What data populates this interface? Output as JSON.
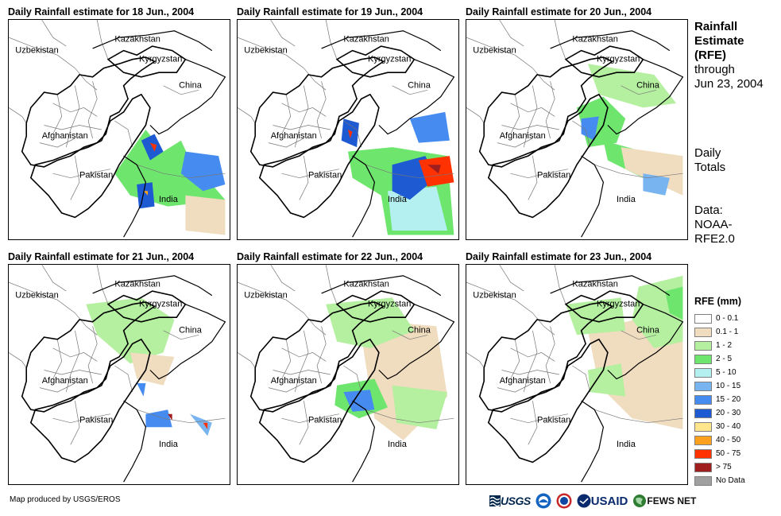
{
  "panels": [
    {
      "title": "Daily Rainfall estimate for 18 Jun., 2004"
    },
    {
      "title": "Daily Rainfall estimate for 19 Jun., 2004"
    },
    {
      "title": "Daily Rainfall estimate for 20 Jun., 2004"
    },
    {
      "title": "Daily Rainfall estimate for 21 Jun., 2004"
    },
    {
      "title": "Daily Rainfall estimate for 22 Jun., 2004"
    },
    {
      "title": "Daily Rainfall estimate for 23 Jun., 2004"
    }
  ],
  "places": {
    "kazakhstan": "Kazakhstan",
    "uzbekistan": "Uzbekistan",
    "kyrgyzstan": "Kyrgyzstan",
    "china": "China",
    "afghanistan": "Afghanistan",
    "pakistan": "Pakistan",
    "india": "India"
  },
  "side": {
    "title_line1": "Rainfall",
    "title_line2": "Estimate",
    "title_line3": "(RFE)",
    "title_line4": "through",
    "title_line5": "Jun 23, 2004",
    "totals_line1": "Daily",
    "totals_line2": "Totals",
    "data_line1": "Data:",
    "data_line2": "NOAA-",
    "data_line3": "RFE2.0"
  },
  "legend": {
    "title": "RFE (mm)",
    "items": [
      {
        "label": "0 - 0.1",
        "color": "#ffffff"
      },
      {
        "label": "0.1 - 1",
        "color": "#f0dcbe"
      },
      {
        "label": "1 - 2",
        "color": "#b4f0a0"
      },
      {
        "label": "2 - 5",
        "color": "#6ee66e"
      },
      {
        "label": "5 - 10",
        "color": "#b4f0f0"
      },
      {
        "label": "10 - 15",
        "color": "#78b4f0"
      },
      {
        "label": "15 - 20",
        "color": "#468cf0"
      },
      {
        "label": "20 - 30",
        "color": "#1e5ad2"
      },
      {
        "label": "30 - 40",
        "color": "#ffe68c"
      },
      {
        "label": "40 - 50",
        "color": "#ffa01e"
      },
      {
        "label": "50 - 75",
        "color": "#ff3200"
      },
      {
        "label": "> 75",
        "color": "#a01e1e"
      },
      {
        "label": "No Data",
        "color": "#a0a0a0"
      }
    ]
  },
  "credit": "Map produced by USGS/EROS",
  "logos": {
    "usgs": "USGS",
    "usaid": "USAID",
    "fews": "FEWS NET"
  },
  "rain": [
    [
      {
        "cls": 3,
        "pts": [
          [
            0.62,
            0.5
          ],
          [
            0.7,
            0.6
          ],
          [
            0.78,
            0.55
          ],
          [
            0.85,
            0.7
          ],
          [
            0.92,
            0.75
          ],
          [
            0.98,
            0.82
          ],
          [
            0.72,
            0.85
          ],
          [
            0.55,
            0.8
          ],
          [
            0.48,
            0.7
          ]
        ]
      },
      {
        "cls": 7,
        "pts": [
          [
            0.6,
            0.55
          ],
          [
            0.66,
            0.52
          ],
          [
            0.7,
            0.6
          ],
          [
            0.64,
            0.64
          ]
        ]
      },
      {
        "cls": 10,
        "pts": [
          [
            0.64,
            0.56
          ],
          [
            0.67,
            0.57
          ],
          [
            0.66,
            0.6
          ]
        ]
      },
      {
        "cls": 6,
        "pts": [
          [
            0.8,
            0.6
          ],
          [
            0.95,
            0.62
          ],
          [
            0.98,
            0.75
          ],
          [
            0.88,
            0.78
          ],
          [
            0.78,
            0.7
          ]
        ]
      },
      {
        "cls": 7,
        "pts": [
          [
            0.58,
            0.75
          ],
          [
            0.65,
            0.74
          ],
          [
            0.66,
            0.85
          ],
          [
            0.59,
            0.86
          ]
        ]
      },
      {
        "cls": 9,
        "pts": [
          [
            0.61,
            0.78
          ],
          [
            0.63,
            0.78
          ],
          [
            0.63,
            0.8
          ]
        ]
      },
      {
        "cls": 1,
        "pts": [
          [
            0.8,
            0.8
          ],
          [
            0.98,
            0.82
          ],
          [
            0.98,
            0.98
          ],
          [
            0.8,
            0.96
          ]
        ]
      }
    ],
    [
      {
        "cls": 3,
        "pts": [
          [
            0.5,
            0.6
          ],
          [
            0.7,
            0.58
          ],
          [
            0.95,
            0.62
          ],
          [
            0.98,
            0.98
          ],
          [
            0.68,
            0.98
          ],
          [
            0.65,
            0.8
          ],
          [
            0.52,
            0.72
          ]
        ]
      },
      {
        "cls": 4,
        "pts": [
          [
            0.68,
            0.78
          ],
          [
            0.9,
            0.76
          ],
          [
            0.95,
            0.96
          ],
          [
            0.7,
            0.96
          ]
        ]
      },
      {
        "cls": 7,
        "pts": [
          [
            0.7,
            0.66
          ],
          [
            0.85,
            0.62
          ],
          [
            0.9,
            0.72
          ],
          [
            0.78,
            0.82
          ],
          [
            0.7,
            0.78
          ]
        ]
      },
      {
        "cls": 10,
        "pts": [
          [
            0.82,
            0.64
          ],
          [
            0.96,
            0.62
          ],
          [
            0.98,
            0.74
          ],
          [
            0.86,
            0.76
          ]
        ]
      },
      {
        "cls": 11,
        "pts": [
          [
            0.86,
            0.66
          ],
          [
            0.92,
            0.66
          ],
          [
            0.91,
            0.7
          ]
        ]
      },
      {
        "cls": 7,
        "pts": [
          [
            0.48,
            0.45
          ],
          [
            0.55,
            0.47
          ],
          [
            0.54,
            0.58
          ],
          [
            0.47,
            0.55
          ]
        ]
      },
      {
        "cls": 10,
        "pts": [
          [
            0.5,
            0.5
          ],
          [
            0.52,
            0.51
          ],
          [
            0.51,
            0.54
          ]
        ]
      },
      {
        "cls": 6,
        "pts": [
          [
            0.78,
            0.45
          ],
          [
            0.94,
            0.42
          ],
          [
            0.96,
            0.55
          ],
          [
            0.82,
            0.56
          ]
        ]
      }
    ],
    [
      {
        "cls": 3,
        "pts": [
          [
            0.5,
            0.4
          ],
          [
            0.62,
            0.35
          ],
          [
            0.72,
            0.45
          ],
          [
            0.68,
            0.56
          ],
          [
            0.55,
            0.58
          ]
        ]
      },
      {
        "cls": 6,
        "pts": [
          [
            0.52,
            0.45
          ],
          [
            0.6,
            0.44
          ],
          [
            0.58,
            0.55
          ],
          [
            0.52,
            0.52
          ]
        ]
      },
      {
        "cls": 3,
        "pts": [
          [
            0.62,
            0.55
          ],
          [
            0.8,
            0.6
          ],
          [
            0.95,
            0.68
          ],
          [
            0.98,
            0.78
          ],
          [
            0.8,
            0.72
          ],
          [
            0.64,
            0.64
          ]
        ]
      },
      {
        "cls": 1,
        "pts": [
          [
            0.7,
            0.58
          ],
          [
            0.98,
            0.62
          ],
          [
            0.98,
            0.8
          ],
          [
            0.72,
            0.68
          ]
        ]
      },
      {
        "cls": 2,
        "pts": [
          [
            0.55,
            0.2
          ],
          [
            0.85,
            0.25
          ],
          [
            0.95,
            0.38
          ],
          [
            0.8,
            0.4
          ],
          [
            0.6,
            0.34
          ]
        ]
      },
      {
        "cls": 5,
        "pts": [
          [
            0.8,
            0.7
          ],
          [
            0.92,
            0.72
          ],
          [
            0.9,
            0.8
          ],
          [
            0.8,
            0.78
          ]
        ]
      }
    ],
    [
      {
        "cls": 2,
        "pts": [
          [
            0.35,
            0.18
          ],
          [
            0.6,
            0.15
          ],
          [
            0.75,
            0.25
          ],
          [
            0.7,
            0.4
          ],
          [
            0.55,
            0.45
          ],
          [
            0.4,
            0.32
          ]
        ]
      },
      {
        "cls": 1,
        "pts": [
          [
            0.55,
            0.4
          ],
          [
            0.75,
            0.42
          ],
          [
            0.7,
            0.55
          ],
          [
            0.58,
            0.52
          ]
        ]
      },
      {
        "cls": 6,
        "pts": [
          [
            0.62,
            0.68
          ],
          [
            0.72,
            0.66
          ],
          [
            0.74,
            0.74
          ],
          [
            0.62,
            0.74
          ]
        ]
      },
      {
        "cls": 11,
        "pts": [
          [
            0.72,
            0.68
          ],
          [
            0.74,
            0.68
          ],
          [
            0.74,
            0.71
          ]
        ]
      },
      {
        "cls": 5,
        "pts": [
          [
            0.82,
            0.68
          ],
          [
            0.92,
            0.72
          ],
          [
            0.9,
            0.78
          ]
        ]
      },
      {
        "cls": 10,
        "pts": [
          [
            0.88,
            0.72
          ],
          [
            0.9,
            0.72
          ],
          [
            0.9,
            0.75
          ]
        ]
      },
      {
        "cls": 6,
        "pts": [
          [
            0.58,
            0.54
          ],
          [
            0.62,
            0.54
          ],
          [
            0.61,
            0.6
          ]
        ]
      }
    ],
    [
      {
        "cls": 1,
        "pts": [
          [
            0.55,
            0.25
          ],
          [
            0.9,
            0.28
          ],
          [
            0.95,
            0.6
          ],
          [
            0.75,
            0.8
          ],
          [
            0.62,
            0.7
          ],
          [
            0.58,
            0.45
          ]
        ]
      },
      {
        "cls": 2,
        "pts": [
          [
            0.4,
            0.18
          ],
          [
            0.7,
            0.15
          ],
          [
            0.8,
            0.3
          ],
          [
            0.6,
            0.38
          ],
          [
            0.45,
            0.35
          ]
        ]
      },
      {
        "cls": 3,
        "pts": [
          [
            0.45,
            0.55
          ],
          [
            0.62,
            0.52
          ],
          [
            0.68,
            0.65
          ],
          [
            0.55,
            0.7
          ],
          [
            0.44,
            0.64
          ]
        ]
      },
      {
        "cls": 6,
        "pts": [
          [
            0.48,
            0.58
          ],
          [
            0.6,
            0.57
          ],
          [
            0.62,
            0.66
          ],
          [
            0.52,
            0.67
          ]
        ]
      },
      {
        "cls": 2,
        "pts": [
          [
            0.7,
            0.55
          ],
          [
            0.95,
            0.58
          ],
          [
            0.9,
            0.75
          ],
          [
            0.72,
            0.72
          ]
        ]
      }
    ],
    [
      {
        "cls": 1,
        "pts": [
          [
            0.55,
            0.3
          ],
          [
            0.98,
            0.2
          ],
          [
            0.98,
            0.75
          ],
          [
            0.75,
            0.7
          ],
          [
            0.6,
            0.55
          ]
        ]
      },
      {
        "cls": 2,
        "pts": [
          [
            0.78,
            0.1
          ],
          [
            0.98,
            0.05
          ],
          [
            0.98,
            0.35
          ],
          [
            0.85,
            0.38
          ],
          [
            0.75,
            0.25
          ]
        ]
      },
      {
        "cls": 3,
        "pts": [
          [
            0.9,
            0.12
          ],
          [
            0.98,
            0.1
          ],
          [
            0.98,
            0.25
          ],
          [
            0.92,
            0.22
          ]
        ]
      },
      {
        "cls": 2,
        "pts": [
          [
            0.45,
            0.18
          ],
          [
            0.7,
            0.15
          ],
          [
            0.72,
            0.3
          ],
          [
            0.5,
            0.32
          ]
        ]
      },
      {
        "cls": 2,
        "pts": [
          [
            0.55,
            0.48
          ],
          [
            0.7,
            0.45
          ],
          [
            0.72,
            0.6
          ],
          [
            0.56,
            0.58
          ]
        ]
      }
    ]
  ]
}
